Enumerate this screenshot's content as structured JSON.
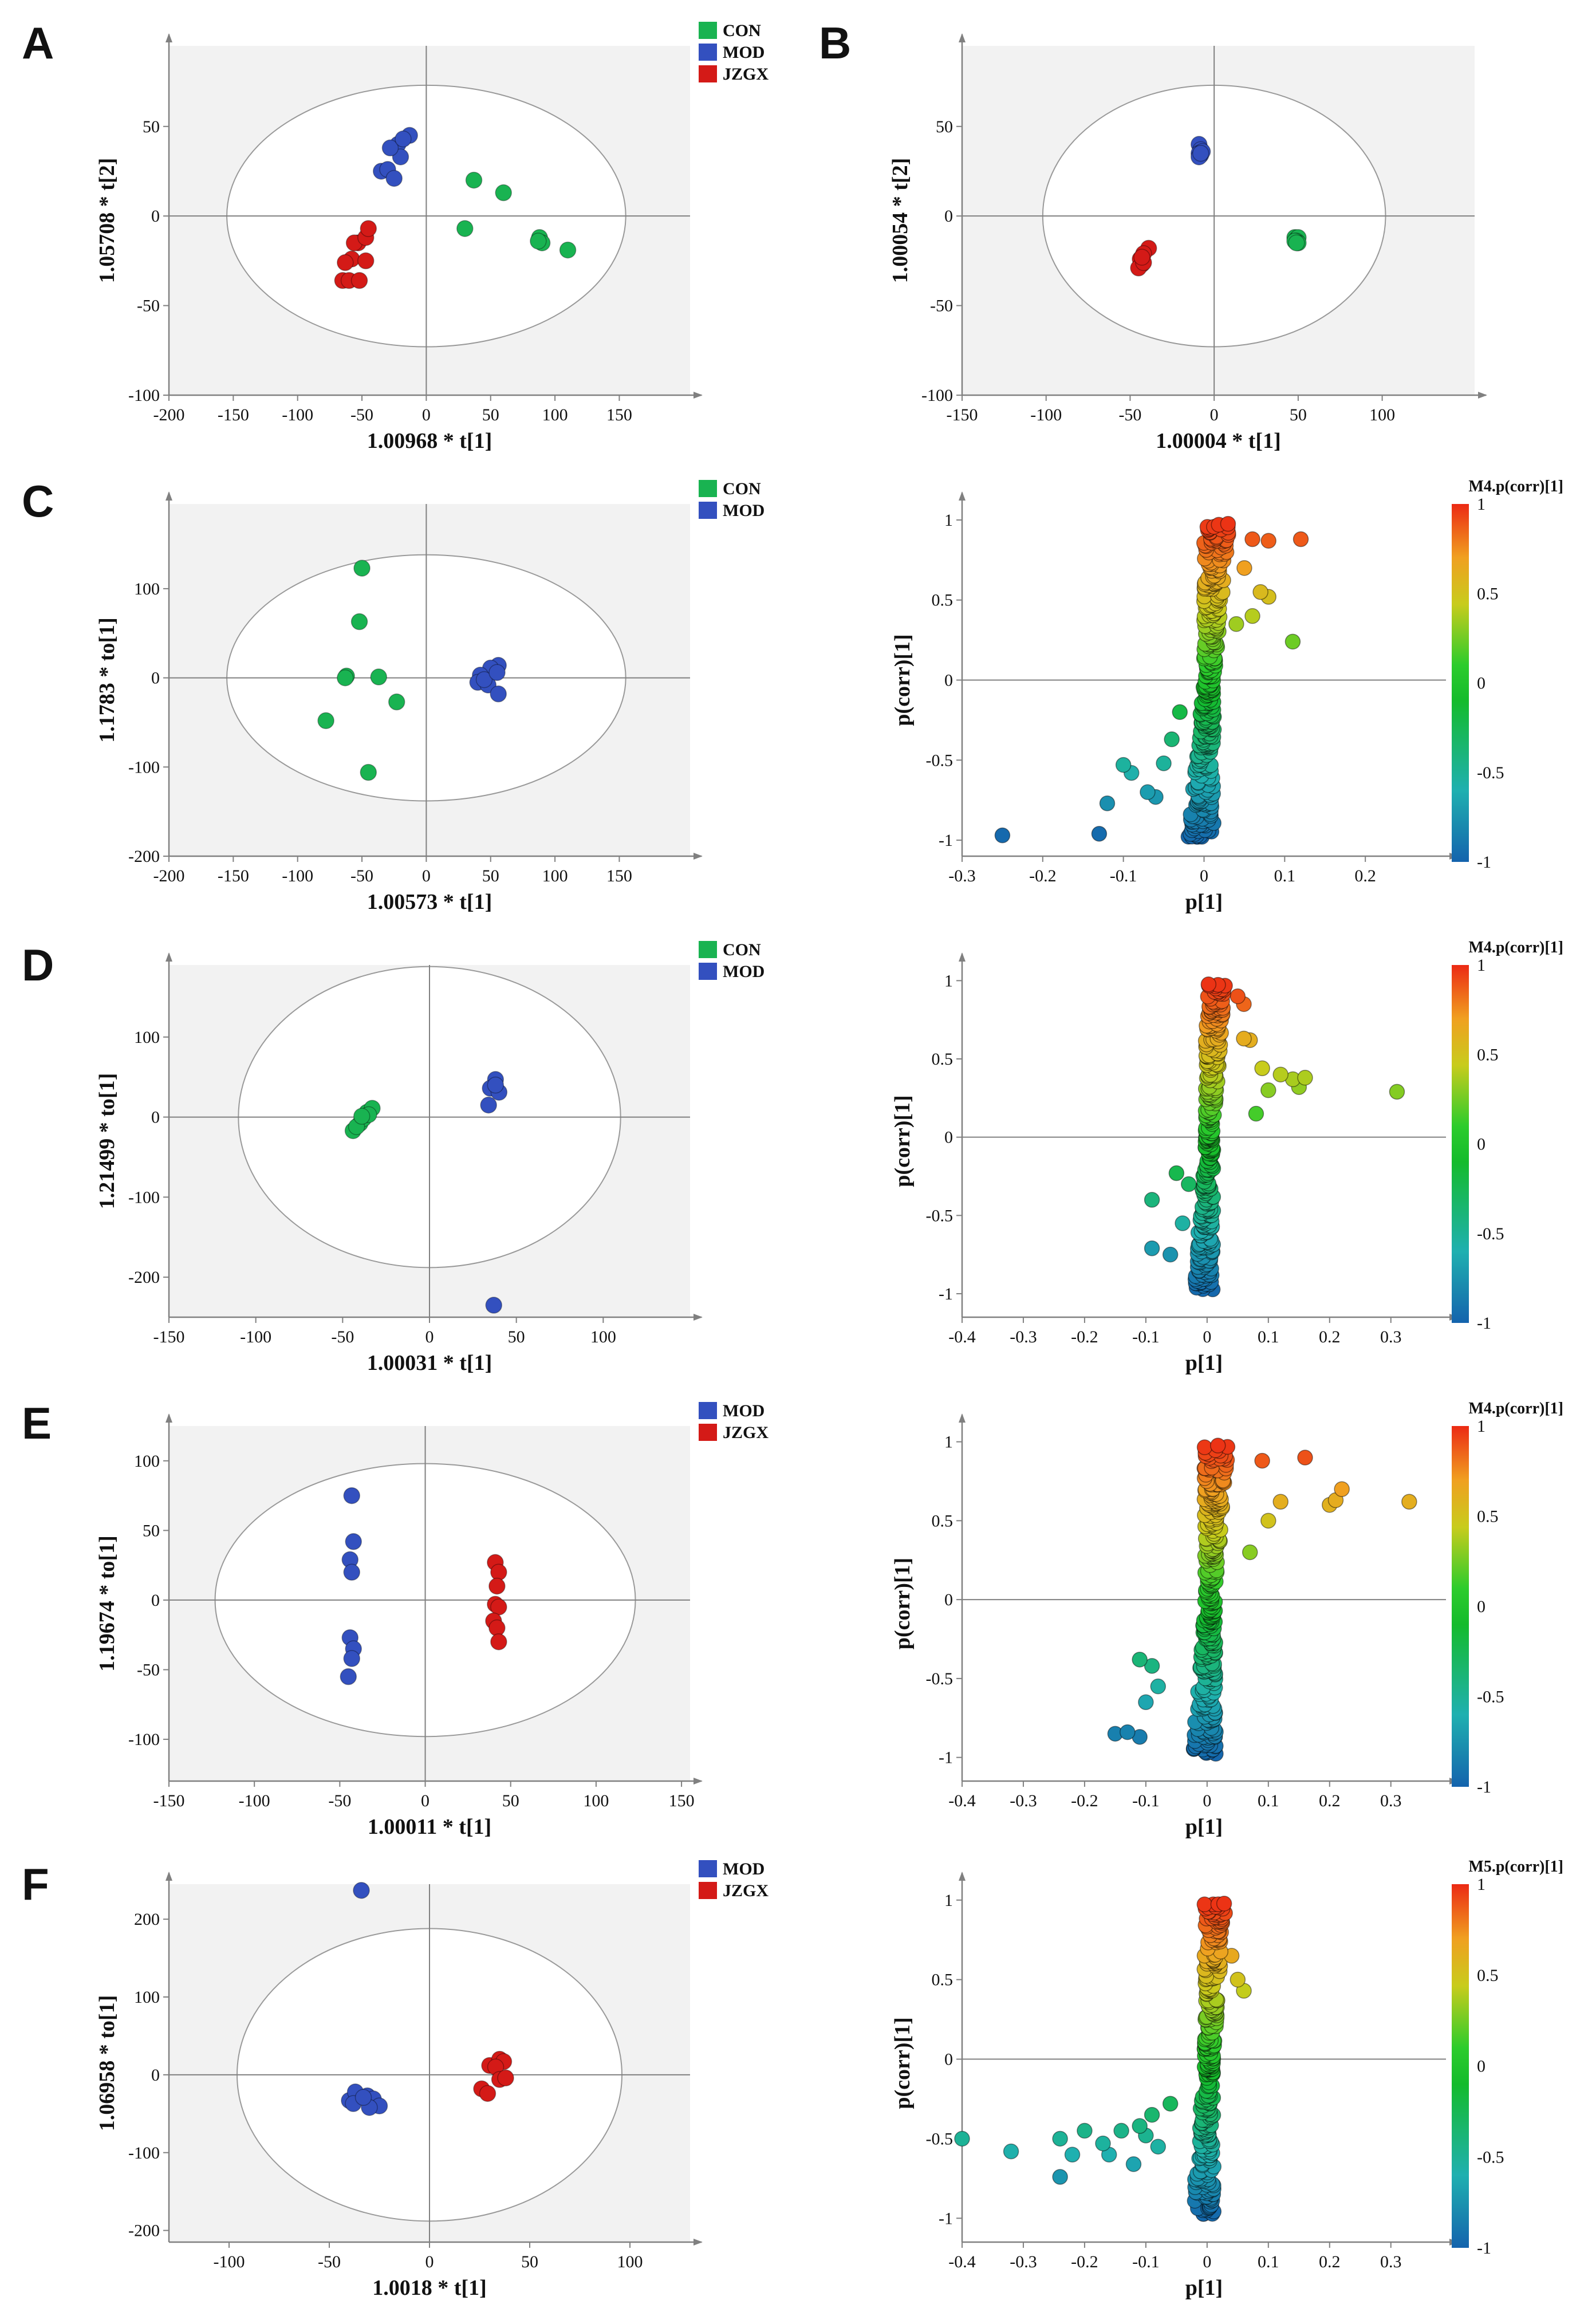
{
  "colors": {
    "CON": "#19b351",
    "MOD": "#3350bf",
    "JZGX": "#d41a17",
    "plot_bg": "#f2f2f2",
    "axis": "#808080",
    "ellipse": "#999999"
  },
  "panel_labels": [
    "A",
    "B",
    "C",
    "D",
    "E",
    "F"
  ],
  "chart_data": [
    {
      "id": "A-scores",
      "panel": "A",
      "type": "scatter",
      "xlabel": "1.00968 * t[1]",
      "ylabel": "1.05708 * t[2]",
      "xlim": [
        -200,
        205
      ],
      "ylim": [
        -100,
        95
      ],
      "xticks": [
        -200,
        -150,
        -100,
        -50,
        0,
        50,
        100,
        150
      ],
      "yticks": [
        -100,
        -50,
        0,
        50
      ],
      "ellipse": {
        "rx": 155,
        "ry": 73
      },
      "legend": [
        "CON",
        "MOD",
        "JZGX"
      ],
      "series": [
        {
          "name": "CON",
          "points": [
            [
              37,
              20
            ],
            [
              60,
              13
            ],
            [
              30,
              -7
            ],
            [
              88,
              -12
            ],
            [
              90,
              -15
            ],
            [
              87,
              -14
            ],
            [
              110,
              -19
            ]
          ]
        },
        {
          "name": "MOD",
          "points": [
            [
              -13,
              45
            ],
            [
              -22,
              40
            ],
            [
              -20,
              33
            ],
            [
              -28,
              38
            ],
            [
              -35,
              25
            ],
            [
              -30,
              26
            ],
            [
              -25,
              21
            ],
            [
              -18,
              43
            ]
          ]
        },
        {
          "name": "JZGX",
          "points": [
            [
              -53,
              -15
            ],
            [
              -56,
              -15
            ],
            [
              -58,
              -24
            ],
            [
              -47,
              -12
            ],
            [
              -45,
              -7
            ],
            [
              -47,
              -25
            ],
            [
              -63,
              -26
            ],
            [
              -65,
              -36
            ],
            [
              -60,
              -36
            ],
            [
              -52,
              -36
            ]
          ]
        }
      ]
    },
    {
      "id": "B-scores",
      "panel": "B",
      "type": "scatter",
      "xlabel": "1.00004 * t[1]",
      "ylabel": "1.00054 * t[2]",
      "xlim": [
        -150,
        155
      ],
      "ylim": [
        -100,
        95
      ],
      "xticks": [
        -150,
        -100,
        -50,
        0,
        50,
        100
      ],
      "yticks": [
        -100,
        -50,
        0,
        50
      ],
      "ellipse": {
        "rx": 102,
        "ry": 73
      },
      "legend": [
        "CON",
        "MOD",
        "JZGX"
      ],
      "series": [
        {
          "name": "CON",
          "points": [
            [
              48,
              -12
            ],
            [
              49,
              -13
            ],
            [
              50,
              -12
            ],
            [
              49,
              -14
            ],
            [
              50,
              -15
            ],
            [
              48,
              -14
            ],
            [
              49,
              -15
            ]
          ]
        },
        {
          "name": "MOD",
          "points": [
            [
              -9,
              40
            ],
            [
              -8,
              37
            ],
            [
              -9,
              35
            ],
            [
              -8,
              34
            ],
            [
              -7,
              36
            ],
            [
              -9,
              33
            ],
            [
              -8,
              35
            ]
          ]
        },
        {
          "name": "JZGX",
          "points": [
            [
              -39,
              -18
            ],
            [
              -42,
              -21
            ],
            [
              -44,
              -24
            ],
            [
              -43,
              -27
            ],
            [
              -45,
              -29
            ],
            [
              -42,
              -26
            ],
            [
              -43,
              -23
            ]
          ]
        }
      ]
    },
    {
      "id": "C-scores",
      "panel": "C",
      "type": "scatter",
      "xlabel": "1.00573 * t[1]",
      "ylabel": "1.1783 * to[1]",
      "xlim": [
        -200,
        205
      ],
      "ylim": [
        -200,
        195
      ],
      "xticks": [
        -200,
        -150,
        -100,
        -50,
        0,
        50,
        100,
        150
      ],
      "yticks": [
        -200,
        -100,
        0,
        100
      ],
      "ellipse": {
        "rx": 155,
        "ry": 138
      },
      "legend": [
        "CON",
        "MOD"
      ],
      "series": [
        {
          "name": "CON",
          "points": [
            [
              -50,
              123
            ],
            [
              -52,
              63
            ],
            [
              -62,
              2
            ],
            [
              -37,
              1
            ],
            [
              -63,
              0
            ],
            [
              -23,
              -27
            ],
            [
              -78,
              -48
            ],
            [
              -45,
              -106
            ]
          ]
        },
        {
          "name": "MOD",
          "points": [
            [
              56,
              14
            ],
            [
              50,
              11
            ],
            [
              42,
              3
            ],
            [
              40,
              -5
            ],
            [
              48,
              -8
            ],
            [
              56,
              -18
            ],
            [
              45,
              -2
            ],
            [
              55,
              6
            ]
          ]
        }
      ]
    },
    {
      "id": "C-splot",
      "panel": "C",
      "type": "scatter",
      "xlabel": "p[1]",
      "ylabel": "p(corr)[1]",
      "colorbar_title": "M4.p(corr)[1]",
      "colorbar_ticks": [
        "1",
        "0.5",
        "0",
        "-0.5",
        "-1"
      ],
      "xlim": [
        -0.3,
        0.3
      ],
      "ylim": [
        -1.1,
        1.1
      ],
      "xticks": [
        "-0.3",
        "-0.2",
        "-0.1",
        "0",
        "0.1",
        "0.2"
      ],
      "yticks": [
        "-1",
        "-0.5",
        "0",
        "0.5",
        "1"
      ],
      "cloud": {
        "xspread": 0.016,
        "shift": 0.006,
        "n": 320
      },
      "outliers": [
        [
          -0.25,
          -0.97
        ],
        [
          -0.13,
          -0.96
        ],
        [
          -0.12,
          -0.77
        ],
        [
          -0.1,
          -0.53
        ],
        [
          -0.09,
          -0.58
        ],
        [
          -0.07,
          -0.7
        ],
        [
          -0.06,
          -0.73
        ],
        [
          -0.05,
          -0.52
        ],
        [
          -0.04,
          -0.37
        ],
        [
          -0.03,
          -0.2
        ],
        [
          0.03,
          0.92
        ],
        [
          0.06,
          0.88
        ],
        [
          0.08,
          0.87
        ],
        [
          0.12,
          0.88
        ],
        [
          0.05,
          0.7
        ],
        [
          0.07,
          0.55
        ],
        [
          0.08,
          0.52
        ],
        [
          0.04,
          0.35
        ],
        [
          0.11,
          0.24
        ],
        [
          0.06,
          0.4
        ]
      ]
    },
    {
      "id": "D-scores",
      "panel": "D",
      "type": "scatter",
      "xlabel": "1.00031 * t[1]",
      "ylabel": "1.21499 * to[1]",
      "xlim": [
        -150,
        150
      ],
      "ylim": [
        -250,
        190
      ],
      "xticks": [
        -150,
        -100,
        -50,
        0,
        50,
        100
      ],
      "yticks": [
        -200,
        -100,
        0,
        100
      ],
      "ellipse": {
        "rx": 110,
        "ry": 188
      },
      "legend": [
        "CON",
        "MOD"
      ],
      "series": [
        {
          "name": "CON",
          "points": [
            [
              -44,
              -17
            ],
            [
              -40,
              -8
            ],
            [
              -38,
              -2
            ],
            [
              -36,
              6
            ],
            [
              -33,
              11
            ],
            [
              -42,
              -12
            ],
            [
              -35,
              3
            ],
            [
              -39,
              1
            ]
          ]
        },
        {
          "name": "MOD",
          "points": [
            [
              38,
              47
            ],
            [
              35,
              36
            ],
            [
              40,
              31
            ],
            [
              34,
              15
            ],
            [
              38,
              40
            ],
            [
              37,
              -235
            ]
          ]
        }
      ]
    },
    {
      "id": "D-splot",
      "panel": "D",
      "type": "scatter",
      "xlabel": "p[1]",
      "ylabel": "p(corr)[1]",
      "colorbar_title": "M4.p(corr)[1]",
      "colorbar_ticks": [
        "1",
        "0.5",
        "0",
        "-0.5",
        "-1"
      ],
      "xlim": [
        -0.4,
        0.39
      ],
      "ylim": [
        -1.15,
        1.1
      ],
      "xticks": [
        "-0.4",
        "-0.3",
        "-0.2",
        "-0.1",
        "0",
        "0.1",
        "0.2",
        "0.3"
      ],
      "yticks": [
        "-1",
        "-0.5",
        "0",
        "0.5",
        "1"
      ],
      "cloud": {
        "xspread": 0.016,
        "shift": 0.004,
        "n": 300
      },
      "outliers": [
        [
          -0.09,
          -0.4
        ],
        [
          -0.09,
          -0.71
        ],
        [
          -0.06,
          -0.75
        ],
        [
          -0.05,
          -0.23
        ],
        [
          -0.04,
          -0.55
        ],
        [
          -0.03,
          -0.3
        ],
        [
          0.07,
          0.62
        ],
        [
          0.06,
          0.63
        ],
        [
          0.09,
          0.44
        ],
        [
          0.12,
          0.4
        ],
        [
          0.14,
          0.37
        ],
        [
          0.16,
          0.38
        ],
        [
          0.15,
          0.32
        ],
        [
          0.31,
          0.29
        ],
        [
          0.1,
          0.3
        ],
        [
          0.08,
          0.15
        ],
        [
          0.05,
          0.9
        ],
        [
          0.06,
          0.85
        ]
      ]
    },
    {
      "id": "E-scores",
      "panel": "E",
      "type": "scatter",
      "xlabel": "1.00011 * t[1]",
      "ylabel": "1.19674 * to[1]",
      "xlim": [
        -150,
        155
      ],
      "ylim": [
        -130,
        125
      ],
      "xticks": [
        -150,
        -100,
        -50,
        0,
        50,
        100,
        150
      ],
      "yticks": [
        -100,
        -50,
        0,
        50,
        100
      ],
      "ellipse": {
        "rx": 123,
        "ry": 98
      },
      "legend": [
        "MOD",
        "JZGX"
      ],
      "series": [
        {
          "name": "MOD",
          "points": [
            [
              -43,
              75
            ],
            [
              -42,
              42
            ],
            [
              -44,
              29
            ],
            [
              -43,
              20
            ],
            [
              -44,
              -27
            ],
            [
              -42,
              -35
            ],
            [
              -43,
              -42
            ],
            [
              -45,
              -55
            ]
          ]
        },
        {
          "name": "JZGX",
          "points": [
            [
              41,
              27
            ],
            [
              43,
              20
            ],
            [
              42,
              10
            ],
            [
              41,
              -3
            ],
            [
              43,
              -5
            ],
            [
              40,
              -15
            ],
            [
              42,
              -20
            ],
            [
              43,
              -30
            ]
          ]
        }
      ]
    },
    {
      "id": "E-splot",
      "panel": "E",
      "type": "scatter",
      "xlabel": "p[1]",
      "ylabel": "p(corr)[1]",
      "colorbar_title": "M4.p(corr)[1]",
      "colorbar_ticks": [
        "1",
        "0.5",
        "0",
        "-0.5",
        "-1"
      ],
      "xlim": [
        -0.4,
        0.39
      ],
      "ylim": [
        -1.15,
        1.1
      ],
      "xticks": [
        "-0.4",
        "-0.3",
        "-0.2",
        "-0.1",
        "0",
        "0.1",
        "0.2",
        "0.3"
      ],
      "yticks": [
        "-1",
        "-0.5",
        "0",
        "0.5",
        "1"
      ],
      "cloud": {
        "xspread": 0.02,
        "shift": 0.005,
        "n": 320
      },
      "outliers": [
        [
          -0.15,
          -0.85
        ],
        [
          -0.13,
          -0.84
        ],
        [
          -0.11,
          -0.87
        ],
        [
          -0.11,
          -0.38
        ],
        [
          -0.1,
          -0.65
        ],
        [
          -0.09,
          -0.42
        ],
        [
          -0.08,
          -0.55
        ],
        [
          0.16,
          0.9
        ],
        [
          0.12,
          0.62
        ],
        [
          0.2,
          0.6
        ],
        [
          0.21,
          0.63
        ],
        [
          0.22,
          0.7
        ],
        [
          0.33,
          0.62
        ],
        [
          0.09,
          0.88
        ],
        [
          0.07,
          0.3
        ],
        [
          0.1,
          0.5
        ]
      ]
    },
    {
      "id": "F-scores",
      "panel": "F",
      "type": "scatter",
      "xlabel": "1.0018 * t[1]",
      "ylabel": "1.06958 * to[1]",
      "xlim": [
        -130,
        130
      ],
      "ylim": [
        -215,
        245
      ],
      "xticks": [
        -100,
        -50,
        0,
        50,
        100
      ],
      "yticks": [
        -200,
        -100,
        0,
        100,
        200
      ],
      "ellipse": {
        "rx": 96,
        "ry": 188
      },
      "legend": [
        "MOD",
        "JZGX"
      ],
      "series": [
        {
          "name": "MOD",
          "points": [
            [
              -34,
              237
            ],
            [
              -40,
              -33
            ],
            [
              -37,
              -22
            ],
            [
              -31,
              -27
            ],
            [
              -28,
              -31
            ],
            [
              -25,
              -40
            ],
            [
              -30,
              -42
            ],
            [
              -38,
              -37
            ],
            [
              -33,
              -29
            ]
          ]
        },
        {
          "name": "JZGX",
          "points": [
            [
              30,
              12
            ],
            [
              35,
              20
            ],
            [
              37,
              17
            ],
            [
              33,
              10
            ],
            [
              26,
              -18
            ],
            [
              29,
              -24
            ],
            [
              35,
              -6
            ],
            [
              38,
              -4
            ]
          ]
        }
      ]
    },
    {
      "id": "F-splot",
      "panel": "F",
      "type": "scatter",
      "xlabel": "p[1]",
      "ylabel": "p(corr)[1]",
      "colorbar_title": "M5.p(corr)[1]",
      "colorbar_ticks": [
        "1",
        "0.5",
        "0",
        "-0.5",
        "-1"
      ],
      "xlim": [
        -0.4,
        0.39
      ],
      "ylim": [
        -1.15,
        1.1
      ],
      "xticks": [
        "-0.4",
        "-0.3",
        "-0.2",
        "-0.1",
        "0",
        "0.1",
        "0.2",
        "0.3"
      ],
      "yticks": [
        "-1",
        "-0.5",
        "0",
        "0.5",
        "1"
      ],
      "cloud": {
        "xspread": 0.018,
        "shift": 0.003,
        "n": 300
      },
      "outliers": [
        [
          -0.4,
          -0.5
        ],
        [
          -0.32,
          -0.58
        ],
        [
          -0.24,
          -0.5
        ],
        [
          -0.24,
          -0.74
        ],
        [
          -0.22,
          -0.6
        ],
        [
          -0.2,
          -0.45
        ],
        [
          -0.17,
          -0.53
        ],
        [
          -0.16,
          -0.6
        ],
        [
          -0.14,
          -0.45
        ],
        [
          -0.12,
          -0.66
        ],
        [
          -0.11,
          -0.42
        ],
        [
          -0.1,
          -0.48
        ],
        [
          -0.09,
          -0.35
        ],
        [
          -0.08,
          -0.55
        ],
        [
          -0.06,
          -0.28
        ],
        [
          0.06,
          0.43
        ],
        [
          0.04,
          0.65
        ],
        [
          0.05,
          0.5
        ]
      ]
    }
  ]
}
